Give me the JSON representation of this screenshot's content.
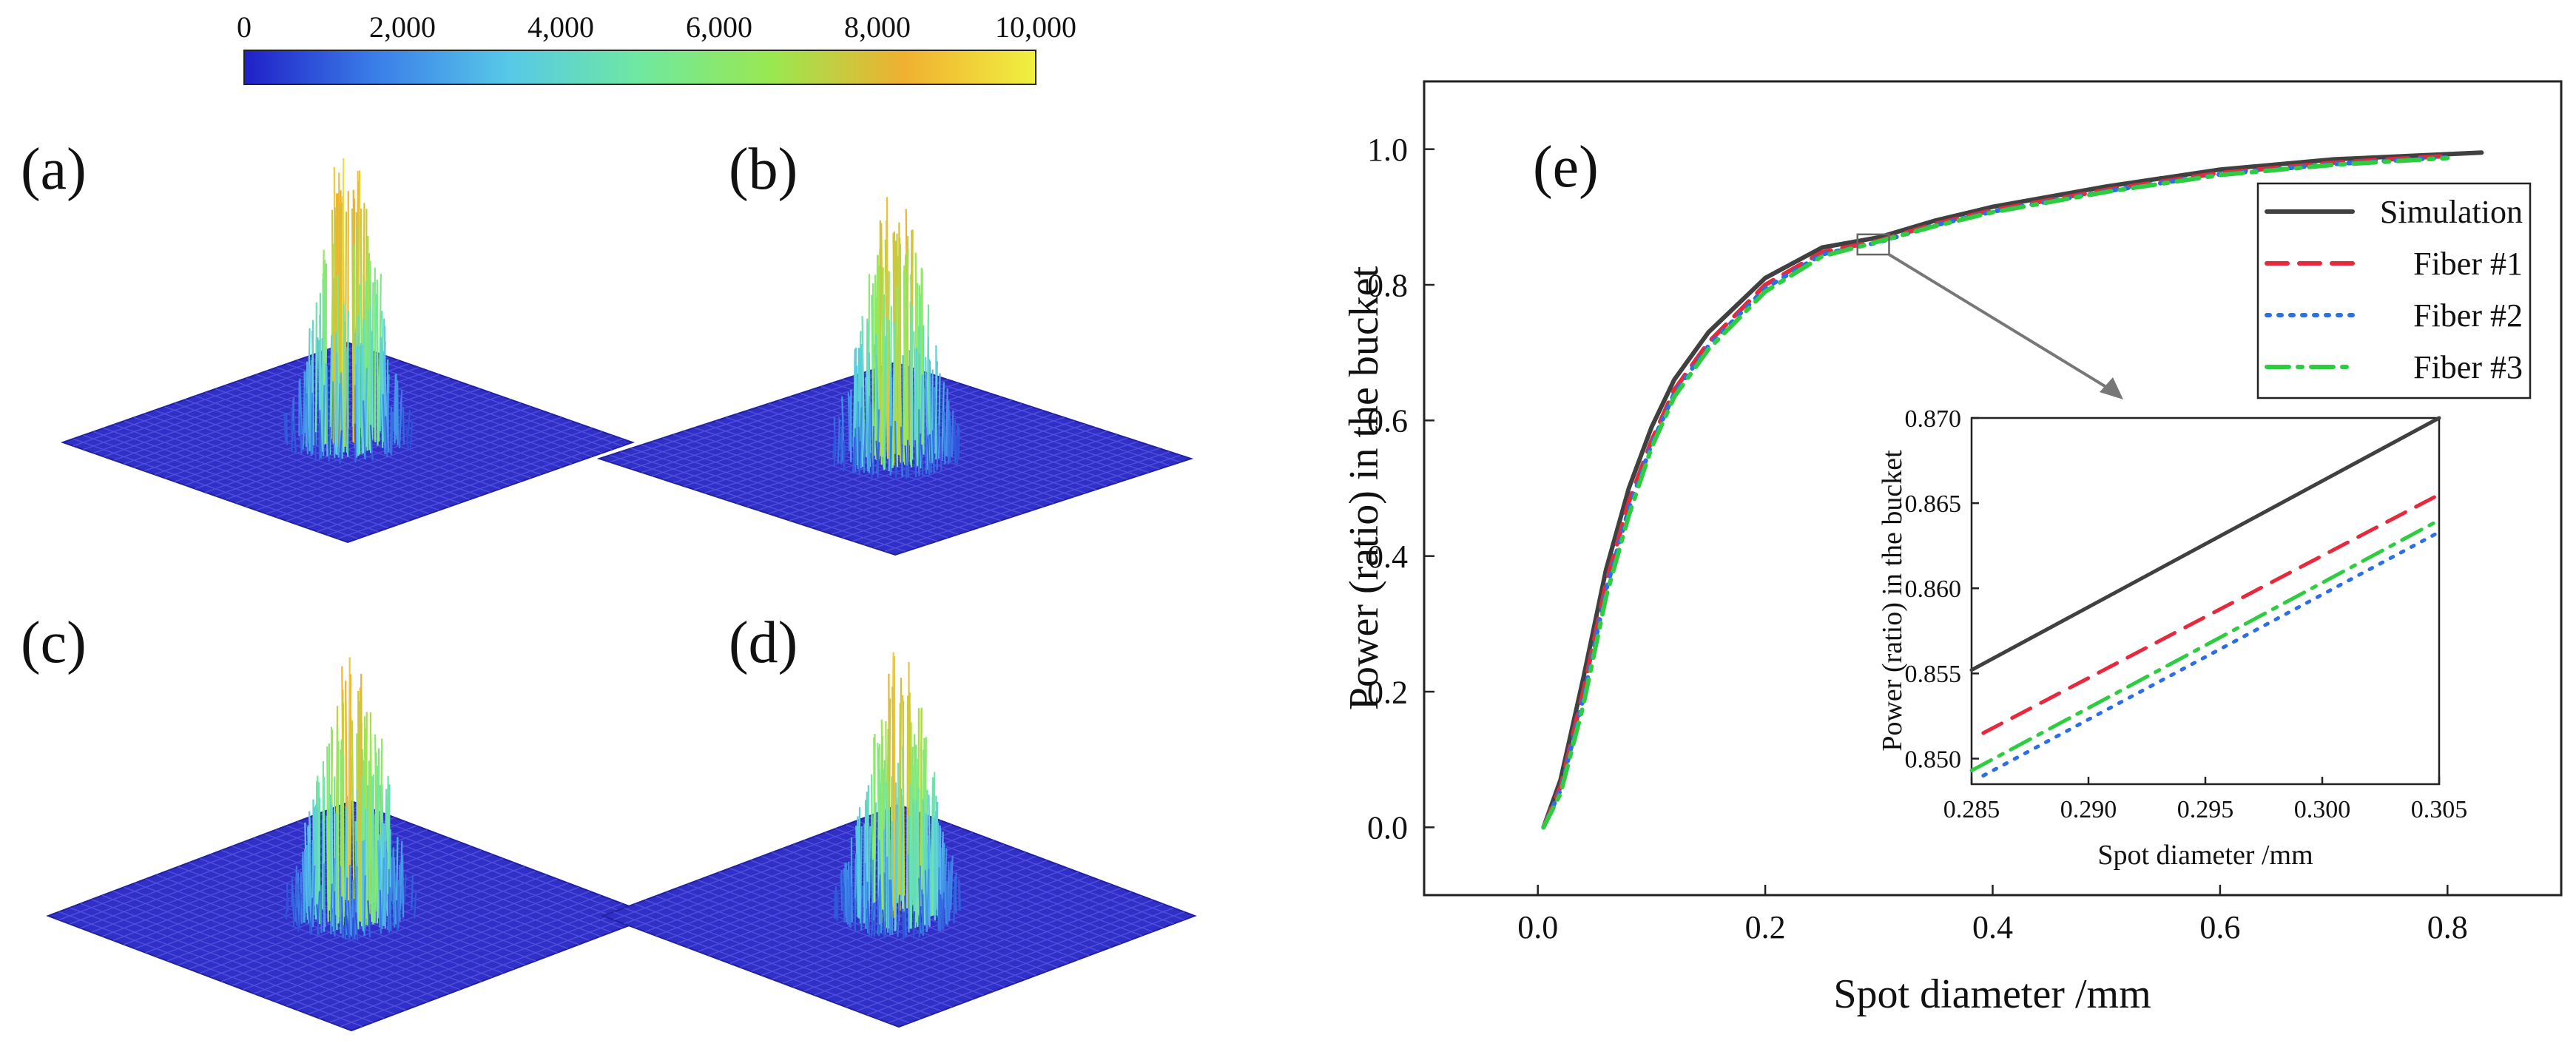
{
  "colorbar": {
    "ticks": [
      "0",
      "2,000",
      "4,000",
      "6,000",
      "8,000",
      "10,000"
    ],
    "tick_values": [
      0,
      2000,
      4000,
      6000,
      8000,
      10000
    ],
    "range": [
      0,
      10000
    ],
    "colors": [
      "#2020c8",
      "#3a7ee8",
      "#57c8e8",
      "#6fe8a0",
      "#9ae850",
      "#f0b030",
      "#f0f040"
    ]
  },
  "panels": [
    {
      "label": "(a)",
      "peak": 10000
    },
    {
      "label": "(b)",
      "peak": 9500
    },
    {
      "label": "(c)",
      "peak": 9500
    },
    {
      "label": "(d)",
      "peak": 9500
    }
  ],
  "chart_data": [
    {
      "type": "line",
      "label": "(e)",
      "xlabel": "Spot diameter /mm",
      "ylabel": "Power (ratio) in the bucket",
      "xlim": [
        -0.1,
        0.9
      ],
      "ylim": [
        -0.1,
        1.1
      ],
      "xticks": [
        0.0,
        0.2,
        0.4,
        0.6,
        0.8
      ],
      "xtick_labels": [
        "0.0",
        "0.2",
        "0.4",
        "0.6",
        "0.8"
      ],
      "yticks": [
        0.0,
        0.2,
        0.4,
        0.6,
        0.8,
        1.0
      ],
      "ytick_labels": [
        "0.0",
        "0.2",
        "0.4",
        "0.6",
        "0.8",
        "1.0"
      ],
      "legend_position": "right",
      "zoom_box": {
        "x": [
          0.285,
          0.305
        ],
        "y": [
          0.849,
          0.87
        ]
      },
      "series": [
        {
          "name": "Simulation",
          "color": "#404040",
          "dash": "solid",
          "x": [
            0.005,
            0.02,
            0.04,
            0.06,
            0.08,
            0.1,
            0.12,
            0.15,
            0.2,
            0.25,
            0.3,
            0.35,
            0.4,
            0.5,
            0.6,
            0.7,
            0.83
          ],
          "y": [
            0.0,
            0.07,
            0.22,
            0.38,
            0.5,
            0.59,
            0.66,
            0.73,
            0.81,
            0.855,
            0.87,
            0.895,
            0.915,
            0.945,
            0.97,
            0.985,
            0.995
          ]
        },
        {
          "name": "Fiber #1",
          "color": "#e8283c",
          "dash": "dashed",
          "x": [
            0.005,
            0.02,
            0.04,
            0.06,
            0.08,
            0.1,
            0.12,
            0.15,
            0.2,
            0.25,
            0.3,
            0.35,
            0.4,
            0.5,
            0.6,
            0.7,
            0.8
          ],
          "y": [
            0.0,
            0.06,
            0.2,
            0.36,
            0.48,
            0.57,
            0.645,
            0.715,
            0.8,
            0.848,
            0.865,
            0.89,
            0.91,
            0.94,
            0.965,
            0.98,
            0.99
          ]
        },
        {
          "name": "Fiber #2",
          "color": "#2c6de8",
          "dash": "dotted",
          "x": [
            0.005,
            0.02,
            0.04,
            0.06,
            0.08,
            0.1,
            0.12,
            0.15,
            0.2,
            0.25,
            0.3,
            0.35,
            0.4,
            0.5,
            0.6,
            0.7,
            0.8
          ],
          "y": [
            0.0,
            0.055,
            0.19,
            0.35,
            0.47,
            0.565,
            0.64,
            0.71,
            0.795,
            0.845,
            0.863,
            0.888,
            0.908,
            0.938,
            0.963,
            0.978,
            0.988
          ]
        },
        {
          "name": "Fiber #3",
          "color": "#2ecc40",
          "dash": "dashdot",
          "x": [
            0.005,
            0.02,
            0.04,
            0.06,
            0.08,
            0.1,
            0.12,
            0.15,
            0.2,
            0.25,
            0.3,
            0.35,
            0.4,
            0.5,
            0.6,
            0.7,
            0.8
          ],
          "y": [
            0.0,
            0.05,
            0.18,
            0.34,
            0.46,
            0.56,
            0.635,
            0.705,
            0.79,
            0.842,
            0.864,
            0.887,
            0.907,
            0.937,
            0.962,
            0.977,
            0.987
          ]
        }
      ]
    },
    {
      "type": "line",
      "label": "inset",
      "xlabel": "Spot diameter /mm",
      "ylabel": "Power (ratio) in the bucket",
      "xlim": [
        0.285,
        0.305
      ],
      "ylim": [
        0.8485,
        0.87
      ],
      "xticks": [
        0.285,
        0.29,
        0.295,
        0.3,
        0.305
      ],
      "xtick_labels": [
        "0.285",
        "0.290",
        "0.295",
        "0.300",
        "0.305"
      ],
      "yticks": [
        0.85,
        0.855,
        0.86,
        0.865,
        0.87
      ],
      "ytick_labels": [
        "0.850",
        "0.855",
        "0.860",
        "0.865",
        "0.870"
      ],
      "series": [
        {
          "name": "Simulation",
          "color": "#404040",
          "dash": "solid",
          "x": [
            0.285,
            0.305
          ],
          "y": [
            0.8552,
            0.87
          ]
        },
        {
          "name": "Fiber #1",
          "color": "#e8283c",
          "dash": "dashed",
          "x": [
            0.2855,
            0.305
          ],
          "y": [
            0.8515,
            0.8655
          ]
        },
        {
          "name": "Fiber #2",
          "color": "#2c6de8",
          "dash": "dotted",
          "x": [
            0.2855,
            0.305
          ],
          "y": [
            0.849,
            0.8633
          ]
        },
        {
          "name": "Fiber #3",
          "color": "#2ecc40",
          "dash": "dashdot",
          "x": [
            0.285,
            0.305
          ],
          "y": [
            0.8493,
            0.864
          ]
        }
      ]
    }
  ]
}
